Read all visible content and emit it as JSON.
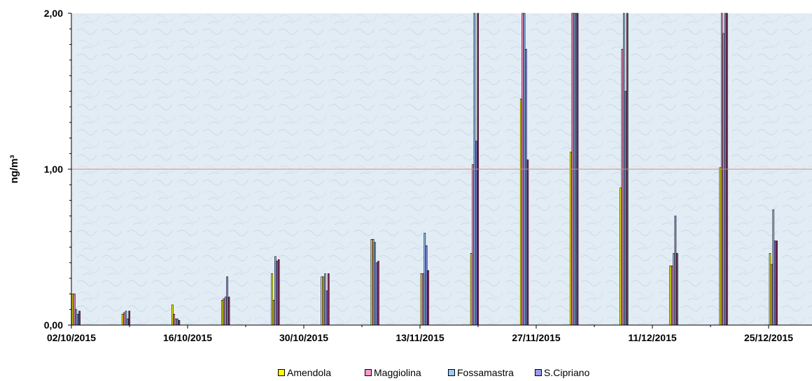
{
  "chart_data": {
    "type": "bar",
    "ylabel": "ng/m³",
    "ylim": [
      0,
      2
    ],
    "y_ticks": [
      "0,00",
      "1,00",
      "2,00"
    ],
    "x_ticks": [
      "02/10/2015",
      "16/10/2015",
      "30/10/2015",
      "13/11/2015",
      "27/11/2015",
      "11/12/2015",
      "25/12/2015"
    ],
    "reference_line": {
      "value": 1.0,
      "color": "#d98a8a"
    },
    "background": "#e2ecf4",
    "grid": false,
    "legend_position": "bottom",
    "dates": [
      "02/10/2015",
      "08/10/2015",
      "14/10/2015",
      "20/10/2015",
      "26/10/2015",
      "01/11/2015",
      "07/11/2015",
      "13/11/2015",
      "19/11/2015",
      "25/11/2015",
      "01/12/2015",
      "07/12/2015",
      "13/12/2015",
      "19/12/2015",
      "25/12/2015"
    ],
    "series": [
      {
        "name": "Amendola",
        "color": "#ffff00",
        "values": [
          0.2,
          0.07,
          0.13,
          0.16,
          0.33,
          0.31,
          0.55,
          0.33,
          0.46,
          1.45,
          1.11,
          0.88,
          0.38,
          1.01,
          0.46
        ]
      },
      {
        "name": "Maggiolina",
        "color": "#ff99cc",
        "values": [
          0.2,
          0.08,
          0.07,
          0.17,
          0.16,
          0.31,
          0.55,
          0.33,
          1.03,
          2.0,
          2.0,
          1.77,
          0.38,
          2.0,
          0.39
        ]
      },
      {
        "name": "Fossamastra",
        "color": "#99ccff",
        "values": [
          0.1,
          0.09,
          0.04,
          0.18,
          0.44,
          0.33,
          0.53,
          0.59,
          2.0,
          2.0,
          2.0,
          2.0,
          0.46,
          1.87,
          0.74
        ]
      },
      {
        "name": "S.Cipriano",
        "color": "#9999ff",
        "values": [
          0.07,
          0.04,
          0.04,
          0.31,
          0.41,
          0.22,
          0.4,
          0.51,
          1.18,
          1.77,
          2.0,
          1.5,
          0.7,
          2.0,
          0.54
        ]
      },
      {
        "name": "",
        "color": "#993366",
        "values": [
          0.09,
          0.09,
          0.03,
          0.18,
          0.42,
          0.33,
          0.41,
          0.35,
          2.0,
          1.06,
          2.0,
          2.0,
          0.46,
          2.0,
          0.54
        ]
      }
    ]
  }
}
